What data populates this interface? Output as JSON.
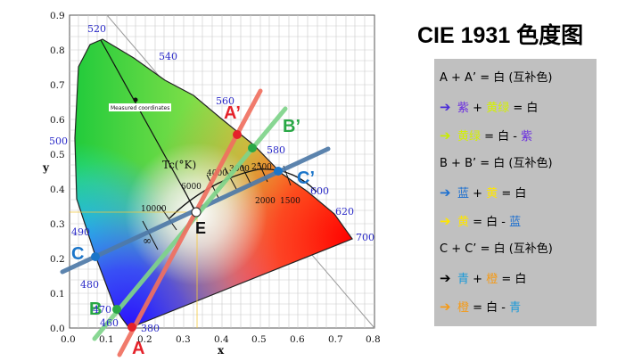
{
  "title": "CIE 1931 色度图",
  "axes": {
    "xlabel": "x",
    "ylabel": "y",
    "x_ticks": [
      "0.0",
      "0.1",
      "0.2",
      "0.3",
      "0.4",
      "0.5",
      "0.6",
      "0.7",
      "0.8"
    ],
    "y_ticks": [
      "0.0",
      "0.1",
      "0.2",
      "0.3",
      "0.4",
      "0.5",
      "0.6",
      "0.7",
      "0.8",
      "0.9"
    ]
  },
  "wavelengths": [
    "380",
    "460",
    "470",
    "480",
    "490",
    "500",
    "520",
    "540",
    "560",
    "580",
    "600",
    "620",
    "700"
  ],
  "planckian": {
    "label": "Tc(°K)",
    "temps": [
      "10000",
      "6000",
      "4000",
      "3000",
      "2500",
      "2000",
      "1500"
    ],
    "infinity": "∞",
    "measured_label": "Measured coordinates"
  },
  "points": {
    "A": "A",
    "A_prime": "A’",
    "B": "B",
    "B_prime": "B’",
    "C": "C",
    "C_prime": "C’",
    "E": "E"
  },
  "colors": {
    "line_A": "#f07060",
    "line_B": "#7fd48a",
    "line_C": "#4f7aa8",
    "dot_A": "#e5222a",
    "dot_B": "#28a745",
    "dot_C": "#1b75c9"
  },
  "legend": {
    "row1": {
      "text": "A + A’ = 白 (互补色)"
    },
    "row2": {
      "arrow": "➔",
      "c1": "紫",
      "op1": " + ",
      "c2": "黄绿",
      "op2": " = 白"
    },
    "row3": {
      "arrow": "➔",
      "c1": "黄绿",
      "op1": " = 白 - ",
      "c2": "紫"
    },
    "row4": {
      "text": "B + B’ = 白 (互补色)"
    },
    "row5": {
      "arrow": "➔",
      "c1": "蓝",
      "op1": " + ",
      "c2": "黄",
      "op2": " = 白"
    },
    "row6": {
      "arrow": "➔",
      "c1": "黄",
      "op1": " = 白 - ",
      "c2": "蓝"
    },
    "row7": {
      "text": "C + C’ = 白 (互补色)"
    },
    "row8": {
      "arrow": "➔",
      "c1": "青",
      "op1": " + ",
      "c2": "橙",
      "op2": " = 白"
    },
    "row9": {
      "arrow": "➔",
      "c1": "橙",
      "op1": " = 白 - ",
      "c2": "青"
    }
  }
}
